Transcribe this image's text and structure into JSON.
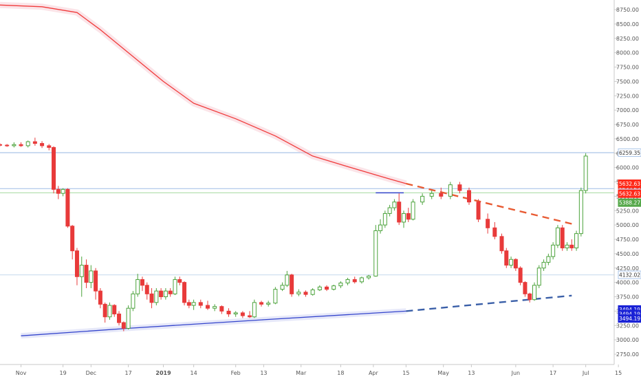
{
  "chart_data": {
    "type": "candlestick",
    "title": "",
    "xlabel": "",
    "ylabel": "",
    "ylim": [
      2250,
      9000
    ],
    "grid": false,
    "y_ticks": [
      8750,
      8500,
      8250,
      8000,
      7750,
      7500,
      7250,
      7000,
      6750,
      6500,
      6250,
      6000,
      5750,
      5500,
      5250,
      5000,
      4750,
      4500,
      4250,
      4000,
      3750,
      3500,
      3250,
      3000,
      2750
    ],
    "x_ticks": [
      {
        "label": "Nov",
        "date": "2018-11-01"
      },
      {
        "label": "19",
        "date": "2018-11-19"
      },
      {
        "label": "Dec",
        "date": "2018-12-01"
      },
      {
        "label": "17",
        "date": "2018-12-17"
      },
      {
        "label": "2019",
        "date": "2019-01-01"
      },
      {
        "label": "14",
        "date": "2019-01-14"
      },
      {
        "label": "Feb",
        "date": "2019-02-01"
      },
      {
        "label": "13",
        "date": "2019-02-13"
      },
      {
        "label": "Mar",
        "date": "2019-03-01"
      },
      {
        "label": "18",
        "date": "2019-03-18"
      },
      {
        "label": "Apr",
        "date": "2019-04-01"
      },
      {
        "label": "15",
        "date": "2019-04-15"
      },
      {
        "label": "May",
        "date": "2019-05-01"
      },
      {
        "label": "13",
        "date": "2019-05-13"
      },
      {
        "label": "Jun",
        "date": "2019-06-01"
      },
      {
        "label": "17",
        "date": "2019-06-17"
      },
      {
        "label": "Jul",
        "date": "2019-07-01"
      },
      {
        "label": "15",
        "date": "2019-07-15"
      }
    ],
    "x_range": [
      "2018-10-23",
      "2019-07-31"
    ],
    "candles": [
      {
        "date": "2018-10-23",
        "o": 6400,
        "h": 6420,
        "l": 6370,
        "c": 6390
      },
      {
        "date": "2018-10-26",
        "o": 6390,
        "h": 6410,
        "l": 6360,
        "c": 6380
      },
      {
        "date": "2018-10-29",
        "o": 6380,
        "h": 6440,
        "l": 6350,
        "c": 6400
      },
      {
        "date": "2018-11-01",
        "o": 6400,
        "h": 6440,
        "l": 6360,
        "c": 6380
      },
      {
        "date": "2018-11-04",
        "o": 6380,
        "h": 6470,
        "l": 6350,
        "c": 6450
      },
      {
        "date": "2018-11-07",
        "o": 6450,
        "h": 6520,
        "l": 6380,
        "c": 6420
      },
      {
        "date": "2018-11-10",
        "o": 6420,
        "h": 6460,
        "l": 6340,
        "c": 6380
      },
      {
        "date": "2018-11-13",
        "o": 6380,
        "h": 6410,
        "l": 6300,
        "c": 6350
      },
      {
        "date": "2018-11-15",
        "o": 6350,
        "h": 6370,
        "l": 5550,
        "c": 5620
      },
      {
        "date": "2018-11-17",
        "o": 5620,
        "h": 5680,
        "l": 5450,
        "c": 5550
      },
      {
        "date": "2018-11-19",
        "o": 5550,
        "h": 5640,
        "l": 5500,
        "c": 5620
      },
      {
        "date": "2018-11-21",
        "o": 5620,
        "h": 5640,
        "l": 4950,
        "c": 4980
      },
      {
        "date": "2018-11-23",
        "o": 4980,
        "h": 5000,
        "l": 4400,
        "c": 4550
      },
      {
        "date": "2018-11-25",
        "o": 4550,
        "h": 4600,
        "l": 3950,
        "c": 4100
      },
      {
        "date": "2018-11-27",
        "o": 4100,
        "h": 4450,
        "l": 3750,
        "c": 4300
      },
      {
        "date": "2018-11-29",
        "o": 4300,
        "h": 4400,
        "l": 3900,
        "c": 4000
      },
      {
        "date": "2018-12-01",
        "o": 4000,
        "h": 4300,
        "l": 3900,
        "c": 4200
      },
      {
        "date": "2018-12-03",
        "o": 4200,
        "h": 4250,
        "l": 3700,
        "c": 3850
      },
      {
        "date": "2018-12-05",
        "o": 3850,
        "h": 3900,
        "l": 3550,
        "c": 3620
      },
      {
        "date": "2018-12-07",
        "o": 3620,
        "h": 3650,
        "l": 3300,
        "c": 3400
      },
      {
        "date": "2018-12-09",
        "o": 3400,
        "h": 3650,
        "l": 3350,
        "c": 3600
      },
      {
        "date": "2018-12-11",
        "o": 3600,
        "h": 3620,
        "l": 3400,
        "c": 3450
      },
      {
        "date": "2018-12-13",
        "o": 3450,
        "h": 3500,
        "l": 3250,
        "c": 3300
      },
      {
        "date": "2018-12-15",
        "o": 3300,
        "h": 3320,
        "l": 3150,
        "c": 3200
      },
      {
        "date": "2018-12-17",
        "o": 3200,
        "h": 3600,
        "l": 3180,
        "c": 3550
      },
      {
        "date": "2018-12-19",
        "o": 3550,
        "h": 3850,
        "l": 3500,
        "c": 3800
      },
      {
        "date": "2018-12-21",
        "o": 3800,
        "h": 4150,
        "l": 3750,
        "c": 4050
      },
      {
        "date": "2018-12-23",
        "o": 4050,
        "h": 4100,
        "l": 3850,
        "c": 3950
      },
      {
        "date": "2018-12-25",
        "o": 3950,
        "h": 4000,
        "l": 3700,
        "c": 3800
      },
      {
        "date": "2018-12-27",
        "o": 3800,
        "h": 3900,
        "l": 3550,
        "c": 3650
      },
      {
        "date": "2018-12-29",
        "o": 3650,
        "h": 3900,
        "l": 3600,
        "c": 3850
      },
      {
        "date": "2018-12-31",
        "o": 3850,
        "h": 3900,
        "l": 3700,
        "c": 3750
      },
      {
        "date": "2019-01-02",
        "o": 3750,
        "h": 3900,
        "l": 3700,
        "c": 3850
      },
      {
        "date": "2019-01-04",
        "o": 3850,
        "h": 3900,
        "l": 3750,
        "c": 3800
      },
      {
        "date": "2019-01-06",
        "o": 3800,
        "h": 4100,
        "l": 3780,
        "c": 4050
      },
      {
        "date": "2019-01-08",
        "o": 4050,
        "h": 4100,
        "l": 3950,
        "c": 4000
      },
      {
        "date": "2019-01-10",
        "o": 4000,
        "h": 4020,
        "l": 3600,
        "c": 3650
      },
      {
        "date": "2019-01-12",
        "o": 3650,
        "h": 3700,
        "l": 3550,
        "c": 3600
      },
      {
        "date": "2019-01-14",
        "o": 3600,
        "h": 3700,
        "l": 3520,
        "c": 3650
      },
      {
        "date": "2019-01-17",
        "o": 3650,
        "h": 3700,
        "l": 3550,
        "c": 3600
      },
      {
        "date": "2019-01-20",
        "o": 3600,
        "h": 3680,
        "l": 3520,
        "c": 3550
      },
      {
        "date": "2019-01-23",
        "o": 3550,
        "h": 3620,
        "l": 3500,
        "c": 3580
      },
      {
        "date": "2019-01-26",
        "o": 3580,
        "h": 3600,
        "l": 3450,
        "c": 3500
      },
      {
        "date": "2019-01-29",
        "o": 3500,
        "h": 3550,
        "l": 3400,
        "c": 3450
      },
      {
        "date": "2019-02-01",
        "o": 3450,
        "h": 3500,
        "l": 3400,
        "c": 3470
      },
      {
        "date": "2019-02-04",
        "o": 3470,
        "h": 3500,
        "l": 3380,
        "c": 3420
      },
      {
        "date": "2019-02-07",
        "o": 3420,
        "h": 3500,
        "l": 3380,
        "c": 3400
      },
      {
        "date": "2019-02-09",
        "o": 3400,
        "h": 3700,
        "l": 3380,
        "c": 3650
      },
      {
        "date": "2019-02-12",
        "o": 3650,
        "h": 3680,
        "l": 3580,
        "c": 3620
      },
      {
        "date": "2019-02-15",
        "o": 3620,
        "h": 3680,
        "l": 3580,
        "c": 3640
      },
      {
        "date": "2019-02-18",
        "o": 3640,
        "h": 3920,
        "l": 3620,
        "c": 3880
      },
      {
        "date": "2019-02-21",
        "o": 3880,
        "h": 4000,
        "l": 3850,
        "c": 3950
      },
      {
        "date": "2019-02-23",
        "o": 3950,
        "h": 4200,
        "l": 3920,
        "c": 4130
      },
      {
        "date": "2019-02-25",
        "o": 4130,
        "h": 4150,
        "l": 3750,
        "c": 3800
      },
      {
        "date": "2019-02-28",
        "o": 3800,
        "h": 3880,
        "l": 3760,
        "c": 3830
      },
      {
        "date": "2019-03-03",
        "o": 3830,
        "h": 3860,
        "l": 3750,
        "c": 3790
      },
      {
        "date": "2019-03-06",
        "o": 3790,
        "h": 3900,
        "l": 3770,
        "c": 3870
      },
      {
        "date": "2019-03-09",
        "o": 3870,
        "h": 3950,
        "l": 3850,
        "c": 3920
      },
      {
        "date": "2019-03-12",
        "o": 3920,
        "h": 3950,
        "l": 3850,
        "c": 3880
      },
      {
        "date": "2019-03-15",
        "o": 3880,
        "h": 3960,
        "l": 3860,
        "c": 3940
      },
      {
        "date": "2019-03-18",
        "o": 3940,
        "h": 4020,
        "l": 3900,
        "c": 3990
      },
      {
        "date": "2019-03-21",
        "o": 3990,
        "h": 4080,
        "l": 3950,
        "c": 4050
      },
      {
        "date": "2019-03-24",
        "o": 4050,
        "h": 4100,
        "l": 3980,
        "c": 4010
      },
      {
        "date": "2019-03-27",
        "o": 4010,
        "h": 4100,
        "l": 3980,
        "c": 4080
      },
      {
        "date": "2019-03-30",
        "o": 4080,
        "h": 4130,
        "l": 4050,
        "c": 4110
      },
      {
        "date": "2019-04-02",
        "o": 4110,
        "h": 5000,
        "l": 4100,
        "c": 4900
      },
      {
        "date": "2019-04-04",
        "o": 4900,
        "h": 5100,
        "l": 4850,
        "c": 5000
      },
      {
        "date": "2019-04-06",
        "o": 5000,
        "h": 5250,
        "l": 4950,
        "c": 5200
      },
      {
        "date": "2019-04-08",
        "o": 5200,
        "h": 5350,
        "l": 5150,
        "c": 5300
      },
      {
        "date": "2019-04-10",
        "o": 5300,
        "h": 5450,
        "l": 5250,
        "c": 5400
      },
      {
        "date": "2019-04-12",
        "o": 5400,
        "h": 5550,
        "l": 5000,
        "c": 5050
      },
      {
        "date": "2019-04-14",
        "o": 5050,
        "h": 5250,
        "l": 4950,
        "c": 5200
      },
      {
        "date": "2019-04-16",
        "o": 5200,
        "h": 5300,
        "l": 5050,
        "c": 5100
      },
      {
        "date": "2019-04-18",
        "o": 5100,
        "h": 5450,
        "l": 5080,
        "c": 5400
      },
      {
        "date": "2019-04-22",
        "o": 5400,
        "h": 5550,
        "l": 5350,
        "c": 5500
      },
      {
        "date": "2019-04-26",
        "o": 5500,
        "h": 5600,
        "l": 5450,
        "c": 5550
      },
      {
        "date": "2019-04-30",
        "o": 5550,
        "h": 5650,
        "l": 5450,
        "c": 5500
      },
      {
        "date": "2019-05-04",
        "o": 5500,
        "h": 5750,
        "l": 5450,
        "c": 5700
      },
      {
        "date": "2019-05-08",
        "o": 5700,
        "h": 5750,
        "l": 5550,
        "c": 5600
      },
      {
        "date": "2019-05-12",
        "o": 5600,
        "h": 5650,
        "l": 5350,
        "c": 5400
      },
      {
        "date": "2019-05-16",
        "o": 5400,
        "h": 5450,
        "l": 5050,
        "c": 5100
      },
      {
        "date": "2019-05-20",
        "o": 5100,
        "h": 5200,
        "l": 4850,
        "c": 4950
      },
      {
        "date": "2019-05-23",
        "o": 4950,
        "h": 5050,
        "l": 4750,
        "c": 4800
      },
      {
        "date": "2019-05-26",
        "o": 4800,
        "h": 4850,
        "l": 4500,
        "c": 4550
      },
      {
        "date": "2019-05-28",
        "o": 4550,
        "h": 4600,
        "l": 4250,
        "c": 4300
      },
      {
        "date": "2019-05-30",
        "o": 4300,
        "h": 4450,
        "l": 4250,
        "c": 4400
      },
      {
        "date": "2019-06-01",
        "o": 4400,
        "h": 4420,
        "l": 4200,
        "c": 4250
      },
      {
        "date": "2019-06-03",
        "o": 4250,
        "h": 4280,
        "l": 3950,
        "c": 4000
      },
      {
        "date": "2019-06-05",
        "o": 4000,
        "h": 4020,
        "l": 3750,
        "c": 3800
      },
      {
        "date": "2019-06-07",
        "o": 3800,
        "h": 3820,
        "l": 3650,
        "c": 3700
      },
      {
        "date": "2019-06-09",
        "o": 3700,
        "h": 4000,
        "l": 3680,
        "c": 3950
      },
      {
        "date": "2019-06-11",
        "o": 3950,
        "h": 4300,
        "l": 3900,
        "c": 4250
      },
      {
        "date": "2019-06-13",
        "o": 4250,
        "h": 4400,
        "l": 4200,
        "c": 4350
      },
      {
        "date": "2019-06-15",
        "o": 4350,
        "h": 4500,
        "l": 4300,
        "c": 4450
      },
      {
        "date": "2019-06-17",
        "o": 4450,
        "h": 4700,
        "l": 4400,
        "c": 4650
      },
      {
        "date": "2019-06-19",
        "o": 4650,
        "h": 5000,
        "l": 4600,
        "c": 4950
      },
      {
        "date": "2019-06-21",
        "o": 4950,
        "h": 5000,
        "l": 4550,
        "c": 4600
      },
      {
        "date": "2019-06-23",
        "o": 4600,
        "h": 4700,
        "l": 4550,
        "c": 4650
      },
      {
        "date": "2019-06-25",
        "o": 4650,
        "h": 4750,
        "l": 4550,
        "c": 4600
      },
      {
        "date": "2019-06-27",
        "o": 4600,
        "h": 4900,
        "l": 4550,
        "c": 4850
      },
      {
        "date": "2019-06-29",
        "o": 4850,
        "h": 5650,
        "l": 4800,
        "c": 5600
      },
      {
        "date": "2019-07-01",
        "o": 5600,
        "h": 6250,
        "l": 5550,
        "c": 6200
      }
    ],
    "overlays": [
      {
        "kind": "moving-average",
        "color": "#f03a3a",
        "points": [
          [
            "2018-10-23",
            8830
          ],
          [
            "2018-11-10",
            8800
          ],
          [
            "2018-11-25",
            8700
          ],
          [
            "2018-12-05",
            8400
          ],
          [
            "2018-12-17",
            8000
          ],
          [
            "2019-01-01",
            7500
          ],
          [
            "2019-01-14",
            7120
          ],
          [
            "2019-02-01",
            6850
          ],
          [
            "2019-02-18",
            6550
          ],
          [
            "2019-03-06",
            6200
          ],
          [
            "2019-03-24",
            5980
          ],
          [
            "2019-04-08",
            5800
          ],
          [
            "2019-04-15",
            5720
          ]
        ]
      },
      {
        "kind": "trendline",
        "color": "#3344cc",
        "points": [
          [
            "2018-11-01",
            3070
          ],
          [
            "2018-12-17",
            3200
          ],
          [
            "2019-02-13",
            3350
          ],
          [
            "2019-04-15",
            3500
          ]
        ]
      },
      {
        "kind": "trendline-dashed",
        "color": "#e85a32",
        "points": [
          [
            "2019-04-15",
            5720
          ],
          [
            "2019-06-25",
            5020
          ]
        ]
      },
      {
        "kind": "trendline-dashed",
        "color": "#3a5fa8",
        "points": [
          [
            "2019-04-15",
            3500
          ],
          [
            "2019-06-25",
            3770
          ]
        ]
      },
      {
        "kind": "box-top",
        "color": "#3344cc",
        "points": [
          [
            "2019-04-02",
            5560
          ],
          [
            "2019-04-14",
            5560
          ]
        ]
      }
    ],
    "levels": [
      {
        "value": 6259.35,
        "label": "6259.35",
        "line_color": "#aac4e8",
        "box_color": "#ffffff",
        "text_color": "#333333"
      },
      {
        "value": 5632.63,
        "label": "5632.63",
        "line_color": "#aac4e8",
        "box_color": "#ff2a1a",
        "text_color": "#ffffff"
      },
      {
        "value": 5560.0,
        "label": "5560.00",
        "line_color": "#b6e0b0",
        "box_color": "#ffffff",
        "text_color": "#333333"
      },
      {
        "value": 4132.02,
        "label": "4132.02",
        "line_color": "#cfe0f0",
        "box_color": "#ffffff",
        "text_color": "#333333"
      }
    ],
    "price_labels": [
      {
        "value": 5720,
        "label": "5632.63",
        "box_color": "#ff2a1a",
        "text_color": "#ffffff"
      },
      {
        "value": 5545,
        "label": "5632.63",
        "box_color": "#ff2a1a",
        "text_color": "#ffffff"
      },
      {
        "value": 5388.27,
        "label": "5388.27",
        "box_color": "#55a84a",
        "text_color": "#ffffff"
      },
      {
        "value": 3530,
        "label": "3494.19",
        "box_color": "#1a22d6",
        "text_color": "#ffffff"
      },
      {
        "value": 3450,
        "label": "3494.19",
        "box_color": "#1a22d6",
        "text_color": "#ffffff"
      },
      {
        "value": 3370,
        "label": "3494.19",
        "box_color": "#1a22d6",
        "text_color": "#ffffff"
      }
    ],
    "colors": {
      "up": "#4aa23a",
      "down": "#e83a3a",
      "up_fill": "#ffffff",
      "down_fill": "#e83a3a",
      "axis_text": "#555555",
      "axis_line": "#c8c8c8"
    }
  }
}
